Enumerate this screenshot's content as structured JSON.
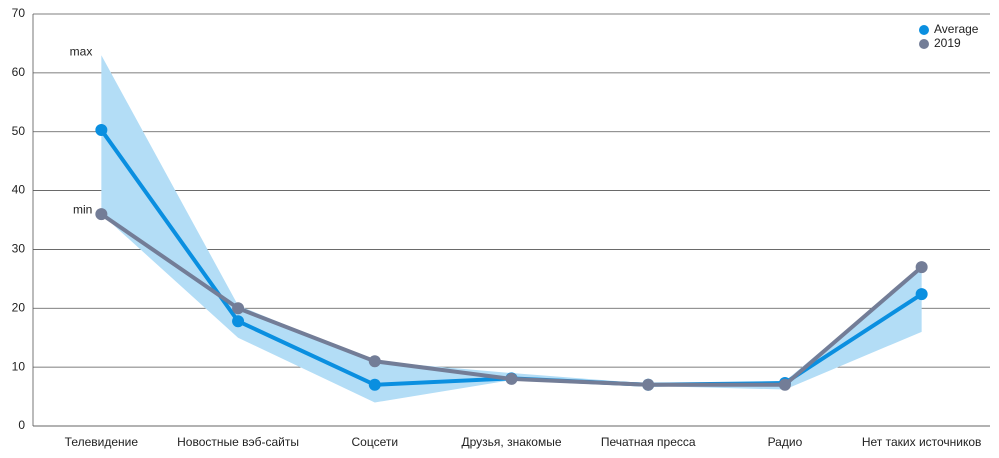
{
  "chart_data": {
    "type": "line",
    "categories": [
      "Телевидение",
      "Новостные вэб-сайты",
      "Соцсети",
      "Друзья, знакомые",
      "Печатная пресса",
      "Радио",
      "Нет таких источников"
    ],
    "series": [
      {
        "name": "Average",
        "color": "#0a8fe0",
        "values": [
          50.3,
          17.8,
          7,
          8.1,
          7,
          7.3,
          22.4
        ]
      },
      {
        "name": "2019",
        "color": "#737d97",
        "values": [
          36,
          20,
          11,
          8,
          7,
          7,
          27
        ]
      }
    ],
    "band": {
      "upper_label": "max",
      "lower_label": "min",
      "color": "#b3ddf6",
      "upper": [
        63,
        20.5,
        11,
        9,
        7.2,
        7.6,
        27
      ],
      "lower": [
        36,
        15,
        4,
        7.8,
        6.8,
        6.2,
        16
      ]
    },
    "ylim": [
      0,
      70
    ],
    "yticks": [
      0,
      10,
      20,
      30,
      40,
      50,
      60,
      70
    ],
    "grid": true,
    "legend": "top-right"
  }
}
